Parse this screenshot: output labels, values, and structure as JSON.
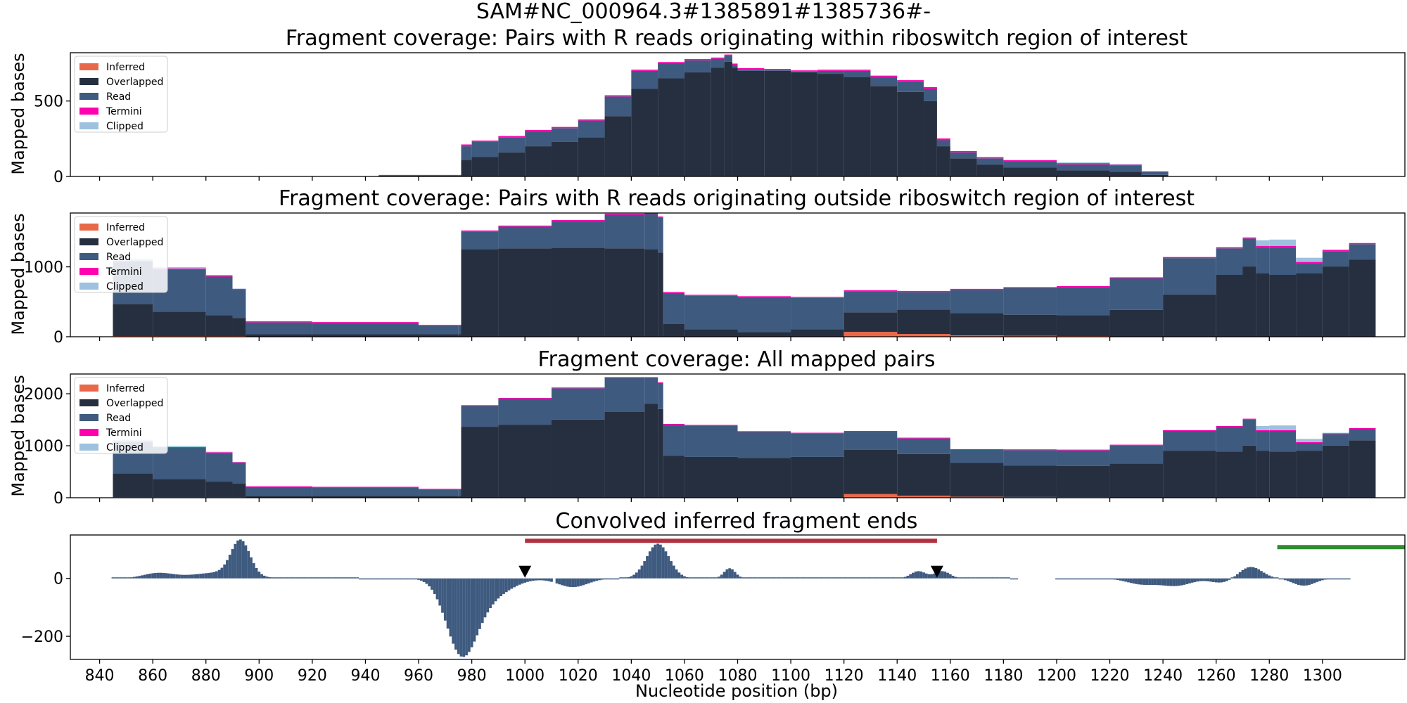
{
  "figure_title": "SAM#NC_000964.3#1385891#1385736#-",
  "colors": {
    "inferred": "#E8694A",
    "overlapped": "#262F40",
    "read": "#3E5A7F",
    "termini": "#FF00B0",
    "clipped": "#9DC1DE",
    "span_red": "#B03040",
    "span_green": "#2E8B2E",
    "marker": "#000000"
  },
  "legend": [
    "Inferred",
    "Overlapped",
    "Read",
    "Termini",
    "Clipped"
  ],
  "chart_data": [
    {
      "type": "area",
      "stacked": true,
      "step": true,
      "title": "Fragment coverage: Pairs with R reads originating within riboswitch region of interest",
      "xlabel": "",
      "ylabel": "Mapped bases",
      "xlim": [
        829,
        1331
      ],
      "ylim": [
        0,
        820
      ],
      "yticks": [
        0,
        500
      ],
      "legend_position": "top-left",
      "x": [
        845,
        870,
        890,
        920,
        945,
        960,
        970,
        975,
        976,
        980,
        990,
        1000,
        1010,
        1020,
        1030,
        1040,
        1050,
        1060,
        1070,
        1075,
        1078,
        1080,
        1090,
        1100,
        1110,
        1120,
        1130,
        1140,
        1150,
        1155,
        1160,
        1170,
        1180,
        1200,
        1220,
        1232
      ],
      "series": [
        {
          "name": "Inferred",
          "values": [
            0,
            0,
            0,
            0,
            0,
            0,
            0,
            0,
            0,
            0,
            0,
            0,
            0,
            0,
            0,
            0,
            0,
            0,
            0,
            0,
            0,
            0,
            0,
            0,
            0,
            0,
            0,
            0,
            0,
            0,
            0,
            0,
            0,
            0,
            0,
            0
          ]
        },
        {
          "name": "Overlapped",
          "values": [
            0,
            0,
            0,
            0,
            5,
            5,
            5,
            5,
            110,
            130,
            160,
            200,
            230,
            260,
            400,
            580,
            650,
            690,
            720,
            760,
            720,
            700,
            700,
            690,
            680,
            660,
            600,
            560,
            500,
            200,
            120,
            80,
            60,
            40,
            30,
            10
          ]
        },
        {
          "name": "Read",
          "values": [
            0,
            0,
            0,
            0,
            5,
            5,
            5,
            5,
            90,
            100,
            100,
            100,
            90,
            110,
            130,
            120,
            100,
            80,
            60,
            40,
            20,
            10,
            5,
            5,
            20,
            40,
            60,
            70,
            80,
            40,
            40,
            40,
            40,
            40,
            40,
            20
          ]
        },
        {
          "name": "Termini",
          "values": [
            0,
            0,
            0,
            0,
            0,
            0,
            0,
            0,
            12,
            8,
            8,
            8,
            8,
            8,
            8,
            8,
            8,
            8,
            8,
            8,
            8,
            8,
            8,
            8,
            8,
            8,
            8,
            8,
            12,
            12,
            8,
            8,
            8,
            8,
            8,
            4
          ]
        },
        {
          "name": "Clipped",
          "values": [
            0,
            0,
            0,
            0,
            0,
            0,
            0,
            0,
            0,
            0,
            0,
            0,
            0,
            0,
            0,
            0,
            0,
            0,
            0,
            0,
            0,
            0,
            0,
            0,
            0,
            0,
            0,
            0,
            0,
            0,
            0,
            0,
            0,
            5,
            5,
            0
          ]
        }
      ]
    },
    {
      "type": "area",
      "stacked": true,
      "step": true,
      "title": "Fragment coverage: Pairs with R reads originating outside riboswitch region of interest",
      "xlabel": "",
      "ylabel": "Mapped bases",
      "xlim": [
        829,
        1331
      ],
      "ylim": [
        0,
        1770
      ],
      "yticks": [
        0,
        1000
      ],
      "legend_position": "top-left",
      "x": [
        845,
        860,
        880,
        890,
        895,
        920,
        960,
        975,
        976,
        990,
        1010,
        1030,
        1045,
        1050,
        1052,
        1060,
        1080,
        1100,
        1120,
        1140,
        1160,
        1180,
        1200,
        1220,
        1240,
        1260,
        1270,
        1275,
        1280,
        1290,
        1300,
        1310
      ],
      "series": [
        {
          "name": "Inferred",
          "values": [
            10,
            10,
            10,
            10,
            5,
            5,
            5,
            5,
            5,
            5,
            5,
            5,
            5,
            5,
            5,
            5,
            5,
            5,
            70,
            40,
            20,
            15,
            10,
            5,
            5,
            5,
            5,
            5,
            5,
            5,
            5,
            5
          ]
        },
        {
          "name": "Overlapped",
          "values": [
            460,
            350,
            300,
            260,
            30,
            30,
            30,
            30,
            1250,
            1260,
            1270,
            1260,
            1250,
            1200,
            180,
            100,
            60,
            100,
            280,
            350,
            320,
            300,
            300,
            380,
            600,
            880,
            1000,
            900,
            880,
            900,
            1000,
            1100
          ]
        },
        {
          "name": "Read",
          "values": [
            600,
            600,
            550,
            400,
            170,
            160,
            120,
            120,
            250,
            310,
            380,
            480,
            500,
            500,
            440,
            480,
            500,
            450,
            300,
            250,
            330,
            380,
            400,
            450,
            520,
            380,
            400,
            380,
            400,
            150,
            220,
            220
          ]
        },
        {
          "name": "Termini",
          "values": [
            15,
            15,
            15,
            15,
            15,
            15,
            15,
            15,
            15,
            15,
            15,
            15,
            15,
            15,
            15,
            15,
            15,
            15,
            15,
            15,
            15,
            15,
            15,
            15,
            15,
            15,
            15,
            15,
            15,
            15,
            15,
            15
          ]
        },
        {
          "name": "Clipped",
          "values": [
            30,
            20,
            10,
            5,
            0,
            0,
            0,
            0,
            0,
            0,
            0,
            0,
            0,
            0,
            0,
            0,
            0,
            0,
            0,
            0,
            0,
            0,
            0,
            0,
            0,
            0,
            0,
            80,
            90,
            60,
            10,
            0
          ]
        }
      ]
    },
    {
      "type": "area",
      "stacked": true,
      "step": true,
      "title": "Fragment coverage: All mapped pairs",
      "xlabel": "",
      "ylabel": "Mapped bases",
      "xlim": [
        829,
        1331
      ],
      "ylim": [
        0,
        2380
      ],
      "yticks": [
        0,
        1000,
        2000
      ],
      "legend_position": "top-left",
      "x": [
        845,
        860,
        880,
        890,
        895,
        920,
        960,
        975,
        976,
        990,
        1010,
        1030,
        1045,
        1050,
        1052,
        1060,
        1080,
        1100,
        1120,
        1140,
        1160,
        1180,
        1200,
        1220,
        1240,
        1260,
        1270,
        1275,
        1280,
        1290,
        1300,
        1310
      ],
      "series": [
        {
          "name": "Inferred",
          "values": [
            10,
            10,
            10,
            10,
            5,
            5,
            5,
            5,
            5,
            5,
            5,
            5,
            5,
            5,
            5,
            5,
            5,
            5,
            70,
            40,
            20,
            15,
            10,
            5,
            5,
            5,
            5,
            5,
            5,
            5,
            5,
            5
          ]
        },
        {
          "name": "Overlapped",
          "values": [
            460,
            350,
            300,
            260,
            30,
            30,
            30,
            30,
            1360,
            1400,
            1500,
            1650,
            1800,
            1700,
            800,
            780,
            760,
            780,
            850,
            800,
            650,
            600,
            600,
            650,
            900,
            880,
            1000,
            900,
            880,
            900,
            1000,
            1100
          ]
        },
        {
          "name": "Read",
          "values": [
            600,
            600,
            550,
            400,
            170,
            160,
            120,
            120,
            400,
            500,
            600,
            650,
            500,
            500,
            600,
            600,
            500,
            450,
            350,
            300,
            250,
            300,
            300,
            350,
            380,
            480,
            500,
            380,
            400,
            150,
            220,
            220
          ]
        },
        {
          "name": "Termini",
          "values": [
            15,
            15,
            15,
            15,
            15,
            15,
            15,
            15,
            15,
            15,
            15,
            15,
            15,
            15,
            15,
            15,
            15,
            15,
            15,
            15,
            15,
            15,
            15,
            15,
            15,
            15,
            15,
            15,
            15,
            15,
            15,
            15
          ]
        },
        {
          "name": "Clipped",
          "values": [
            30,
            20,
            10,
            5,
            0,
            0,
            0,
            0,
            0,
            0,
            0,
            0,
            0,
            0,
            0,
            0,
            0,
            0,
            0,
            0,
            0,
            0,
            0,
            0,
            0,
            0,
            0,
            80,
            90,
            60,
            10,
            0
          ]
        }
      ]
    },
    {
      "type": "bar",
      "title": "Convolved inferred fragment ends",
      "xlabel": "Nucleotide position (bp)",
      "ylabel": "",
      "xlim": [
        829,
        1331
      ],
      "ylim": [
        -280,
        150
      ],
      "xticks": [
        840,
        860,
        880,
        900,
        920,
        940,
        960,
        980,
        1000,
        1020,
        1040,
        1060,
        1080,
        1100,
        1120,
        1140,
        1160,
        1180,
        1200,
        1220,
        1240,
        1260,
        1280,
        1300
      ],
      "yticks": [
        -200,
        0
      ],
      "peaks": [
        {
          "x": 862,
          "h": 18,
          "w": 8
        },
        {
          "x": 885,
          "h": 20,
          "w": 14
        },
        {
          "x": 893,
          "h": 120,
          "w": 5
        },
        {
          "x": 976,
          "h": -230,
          "w": 8
        },
        {
          "x": 985,
          "h": -70,
          "w": 12
        },
        {
          "x": 1018,
          "h": -30,
          "w": 8
        },
        {
          "x": 1050,
          "h": 120,
          "w": 6
        },
        {
          "x": 1077,
          "h": 35,
          "w": 3
        },
        {
          "x": 1148,
          "h": 25,
          "w": 4
        },
        {
          "x": 1157,
          "h": 25,
          "w": 4
        },
        {
          "x": 1232,
          "h": -20,
          "w": 8
        },
        {
          "x": 1245,
          "h": -25,
          "w": 8
        },
        {
          "x": 1262,
          "h": -15,
          "w": 6
        },
        {
          "x": 1273,
          "h": 40,
          "w": 6
        },
        {
          "x": 1293,
          "h": -25,
          "w": 6
        }
      ],
      "segments": [
        {
          "x": [
            845,
            1010
          ]
        },
        {
          "x": [
            1012,
            1185
          ]
        },
        {
          "x": [
            1200,
            1310
          ]
        }
      ],
      "spans": [
        {
          "x0": 1000,
          "x1": 1155,
          "y": 130,
          "color": "span_red"
        },
        {
          "x0": 1283,
          "x1": 1331,
          "y": 108,
          "color": "span_green"
        }
      ],
      "markers": [
        {
          "x": 1000,
          "y": 22
        },
        {
          "x": 1155,
          "y": 22
        }
      ]
    }
  ]
}
